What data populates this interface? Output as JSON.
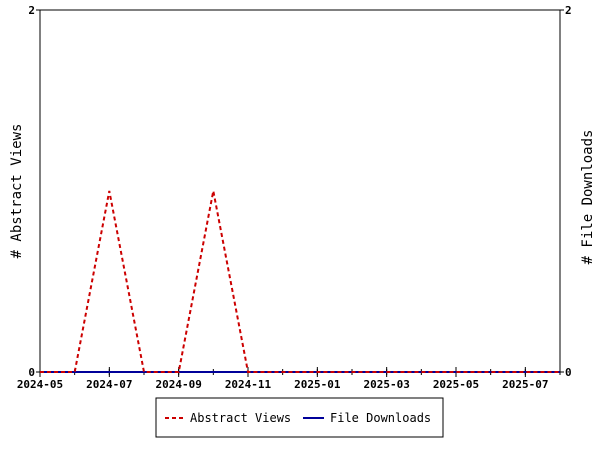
{
  "chart_data": {
    "type": "line",
    "x_axis": {
      "ticks": [
        "2024-05",
        "2024-07",
        "2024-09",
        "2024-11",
        "2025-01",
        "2025-03",
        "2025-05",
        "2025-07"
      ],
      "range": [
        "2024-05",
        "2025-08"
      ]
    },
    "y_left": {
      "label": "# Abstract Views",
      "ylim": [
        0,
        2
      ],
      "ticks": [
        "0",
        "2"
      ]
    },
    "y_right": {
      "label": "# File Downloads",
      "ylim": [
        0,
        2
      ],
      "ticks": [
        "0",
        "2"
      ]
    },
    "series": [
      {
        "name": "Abstract Views",
        "color": "#cc0000",
        "style": "dashed",
        "axis": "left",
        "x": [
          "2024-05",
          "2024-06",
          "2024-07",
          "2024-08",
          "2024-09",
          "2024-10",
          "2024-11",
          "2024-12",
          "2025-01",
          "2025-02",
          "2025-03",
          "2025-04",
          "2025-05",
          "2025-06",
          "2025-07",
          "2025-08"
        ],
        "values": [
          0,
          0,
          1,
          0,
          0,
          1,
          0,
          0,
          0,
          0,
          0,
          0,
          0,
          0,
          0,
          0
        ]
      },
      {
        "name": "File Downloads",
        "color": "#000099",
        "style": "solid",
        "axis": "right",
        "x": [
          "2024-05",
          "2024-06",
          "2024-07",
          "2024-08",
          "2024-09",
          "2024-10",
          "2024-11",
          "2024-12",
          "2025-01",
          "2025-02",
          "2025-03",
          "2025-04",
          "2025-05",
          "2025-06",
          "2025-07",
          "2025-08"
        ],
        "values": [
          0,
          0,
          0,
          0,
          0,
          0,
          0,
          0,
          0,
          0,
          0,
          0,
          0,
          0,
          0,
          0
        ]
      }
    ],
    "legend": {
      "placement": "bottom-center",
      "items": [
        "Abstract Views",
        "File Downloads"
      ]
    },
    "grid": false
  }
}
